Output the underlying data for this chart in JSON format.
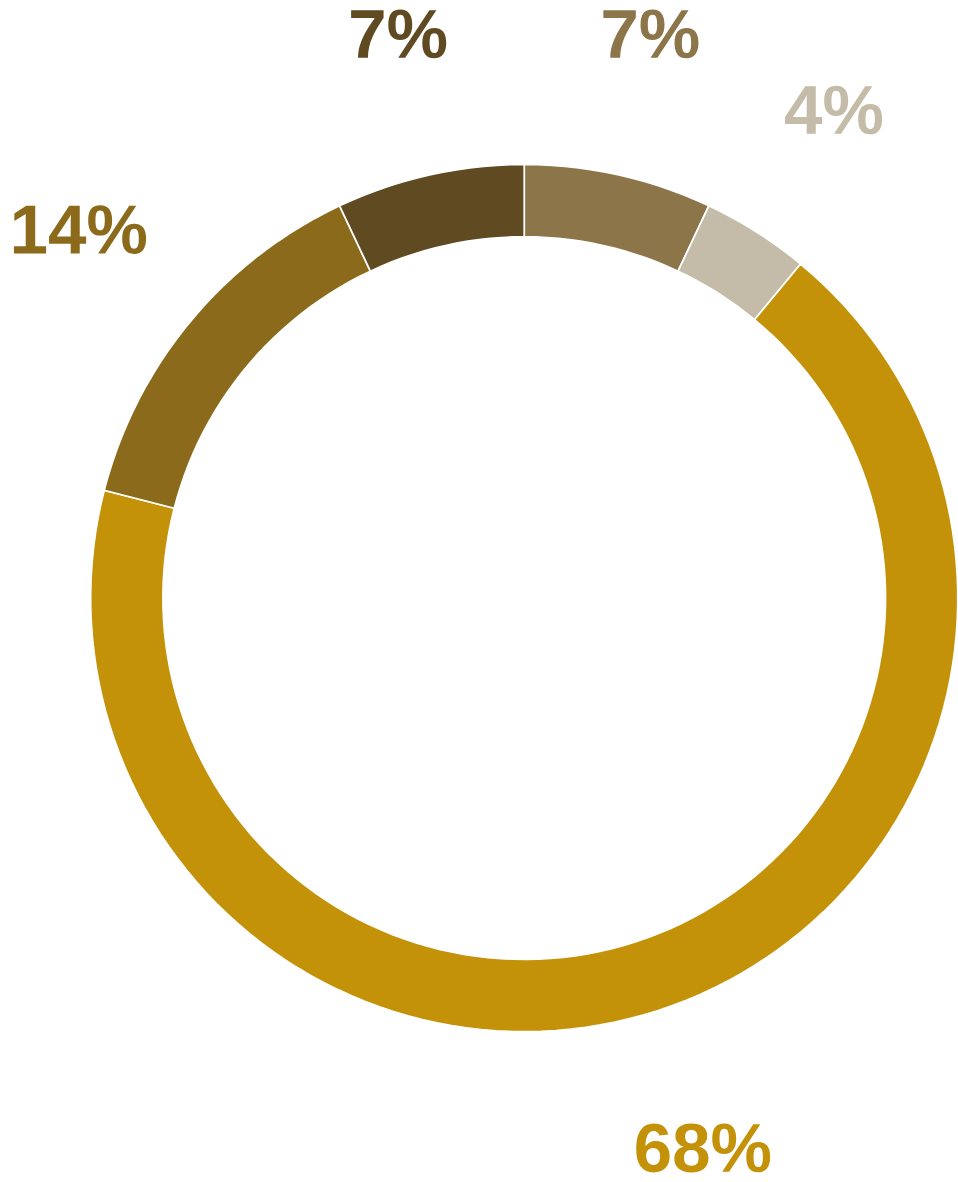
{
  "chart_data": {
    "type": "donut",
    "categories": [
      null,
      null,
      null,
      null,
      null
    ],
    "values": [
      7,
      4,
      68,
      14,
      7
    ],
    "colors": [
      "#8c7548",
      "#c4bba8",
      "#c39209",
      "#8b6a1b",
      "#5f4a22"
    ],
    "value_labels": [
      "7%",
      "4%",
      "68%",
      "14%",
      "7%"
    ]
  }
}
